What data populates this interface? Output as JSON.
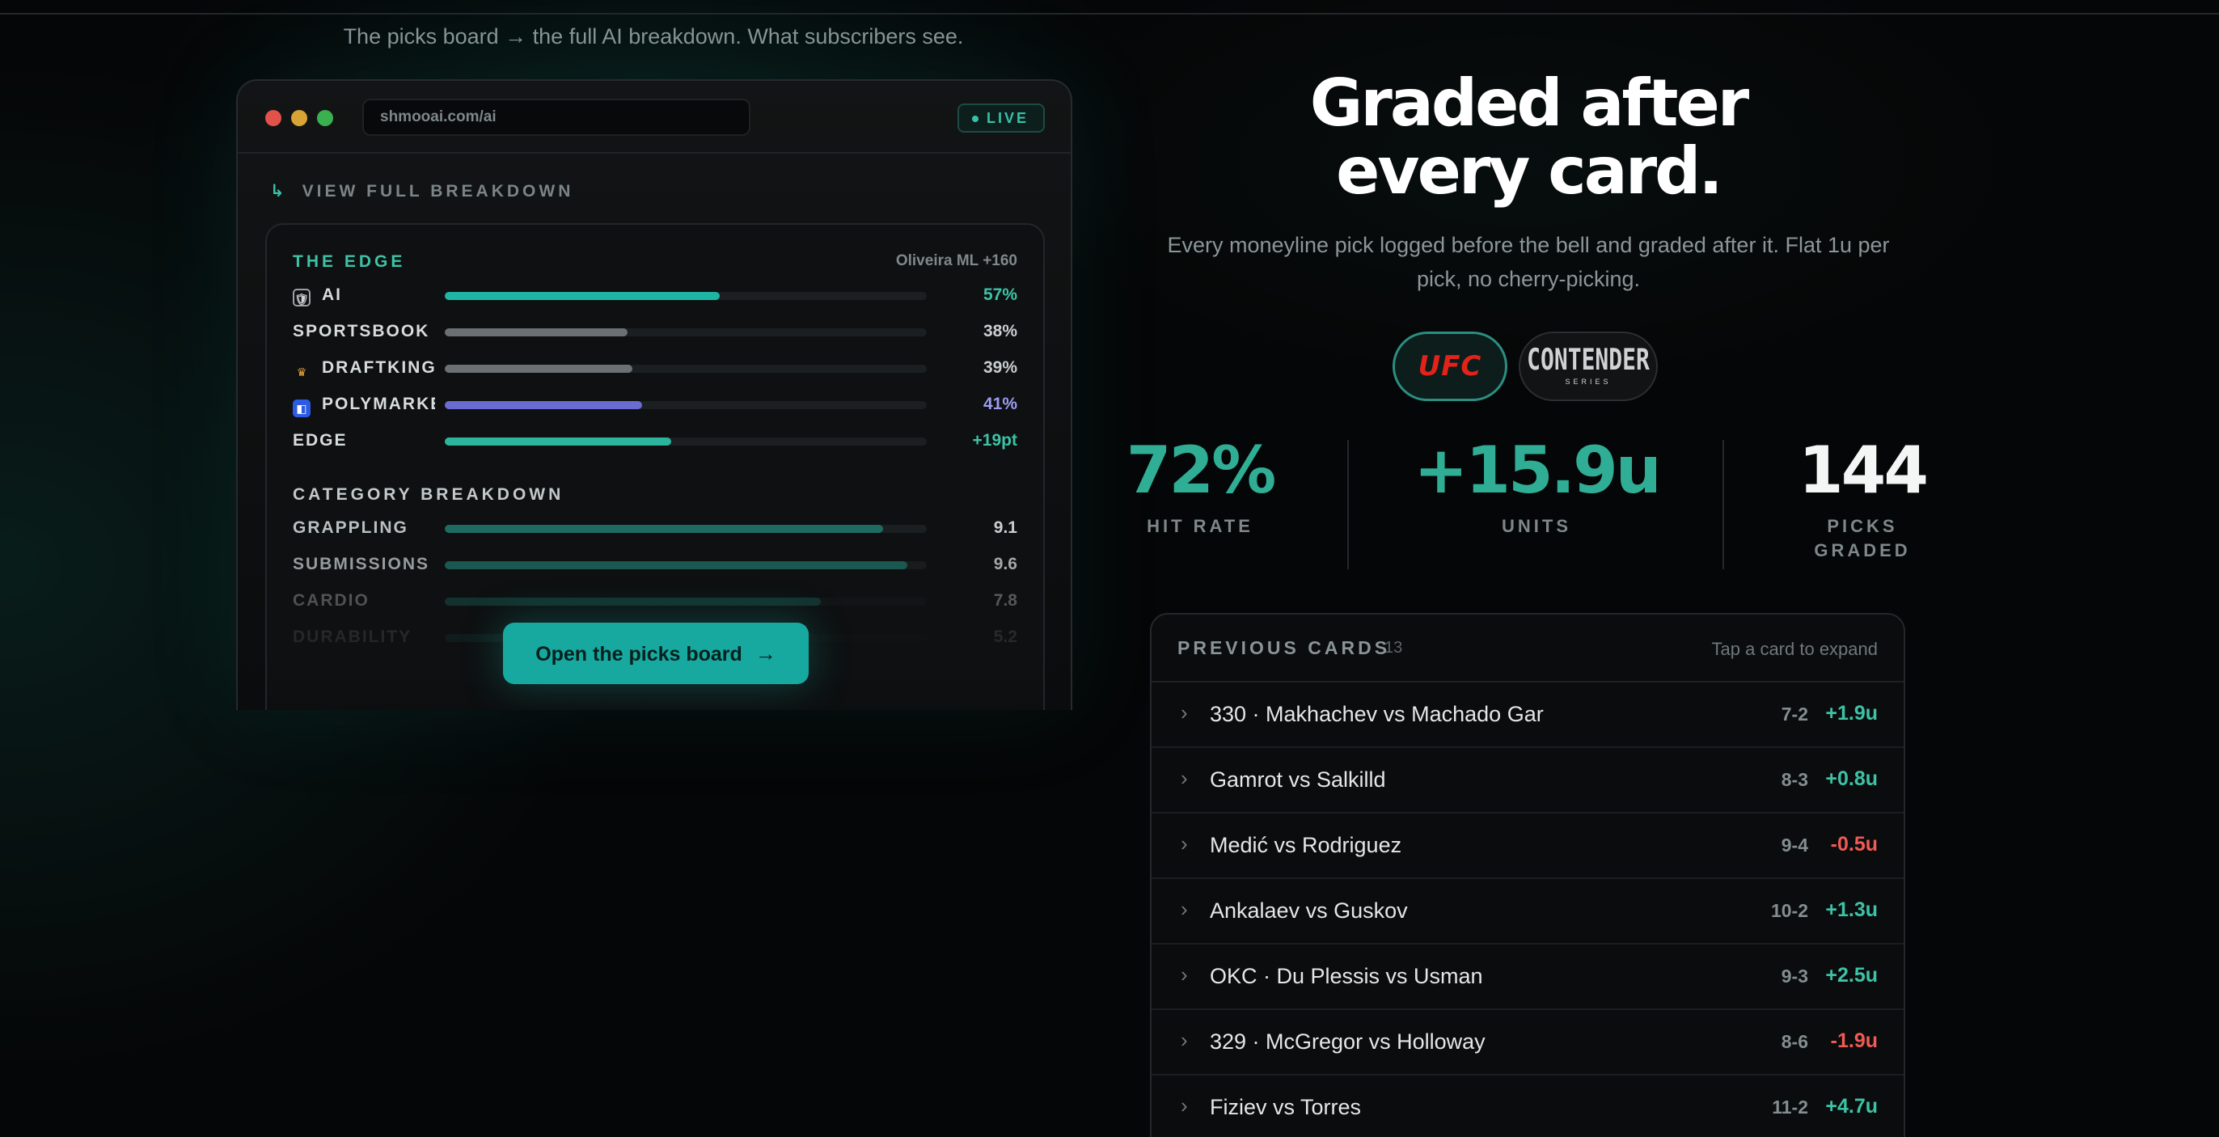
{
  "caption": "The picks board → the full AI breakdown. What subscribers see.",
  "browser": {
    "url": "shmooai.com/ai",
    "live_label": "LIVE",
    "view_full_arrow": "↳",
    "view_full_label": "VIEW FULL BREAKDOWN",
    "edge_section": {
      "title": "THE EDGE",
      "pick": "Oliveira ML +160",
      "rows": [
        {
          "label": "AI",
          "icon": "robot-icon",
          "value": "57%",
          "fill": 0.57,
          "color": "#1fb5a4",
          "value_color": "#3ec2a6"
        },
        {
          "label": "SPORTSBOOK",
          "icon": "",
          "value": "38%",
          "fill": 0.38,
          "color": "#6b7072",
          "value_color": "#c9ced0"
        },
        {
          "label": "DRAFTKINGS",
          "icon": "draftkings-crown-icon",
          "value": "39%",
          "fill": 0.39,
          "color": "#6b7072",
          "value_color": "#c9ced0"
        },
        {
          "label": "POLYMARKET",
          "icon": "polymarket-icon",
          "value": "41%",
          "fill": 0.41,
          "color": "#6b6cd2",
          "value_color": "#9c9df0"
        },
        {
          "label": "EDGE",
          "icon": "",
          "value": "+19pt",
          "fill": 0.47,
          "color": "#2bb59c",
          "value_color": "#3ec2a6"
        }
      ]
    },
    "category_section": {
      "title": "CATEGORY BREAKDOWN",
      "rows": [
        {
          "label": "GRAPPLING",
          "value": "9.1",
          "fill": 0.91
        },
        {
          "label": "SUBMISSIONS",
          "value": "9.6",
          "fill": 0.96
        },
        {
          "label": "CARDIO",
          "value": "7.8",
          "fill": 0.78
        },
        {
          "label": "DURABILITY",
          "value": "5.2",
          "fill": 0.52
        }
      ]
    },
    "cta_label": "Open the picks board",
    "cta_arrow": "→"
  },
  "headline_line1": "Graded after",
  "headline_line2": "every card.",
  "subcopy": "Every moneyline pick logged before the bell and graded after it. Flat 1u per pick, no cherry-picking.",
  "leagues": {
    "ufc": "UFC",
    "contender_main": "CONTENDER",
    "contender_sub": "SERIES"
  },
  "stats": [
    {
      "value": "72%",
      "label": "HIT RATE",
      "color": "#2fae95"
    },
    {
      "value": "+15.9u",
      "label": "UNITS",
      "color": "#2fae95"
    },
    {
      "value": "144",
      "label": "PICKS GRADED",
      "color": "#f4f6f6"
    }
  ],
  "previous_cards": {
    "title": "PREVIOUS CARDS",
    "count": "13",
    "hint": "Tap a card to expand",
    "items": [
      {
        "name": "330 · Makhachev vs Machado Gar",
        "record": "7-2",
        "units": "+1.9u",
        "positive": true
      },
      {
        "name": "Gamrot vs Salkilld",
        "record": "8-3",
        "units": "+0.8u",
        "positive": true
      },
      {
        "name": "Medić vs Rodriguez",
        "record": "9-4",
        "units": "-0.5u",
        "positive": false
      },
      {
        "name": "Ankalaev vs Guskov",
        "record": "10-2",
        "units": "+1.3u",
        "positive": true
      },
      {
        "name": "OKC · Du Plessis vs Usman",
        "record": "9-3",
        "units": "+2.5u",
        "positive": true
      },
      {
        "name": "329 · McGregor vs Holloway",
        "record": "8-6",
        "units": "-1.9u",
        "positive": false
      },
      {
        "name": "Fiziev vs Torres",
        "record": "11-2",
        "units": "+4.7u",
        "positive": true
      }
    ]
  },
  "colors": {
    "positive": "#3ec2a6",
    "negative": "#ef5a55",
    "accent": "#17a8a0"
  }
}
